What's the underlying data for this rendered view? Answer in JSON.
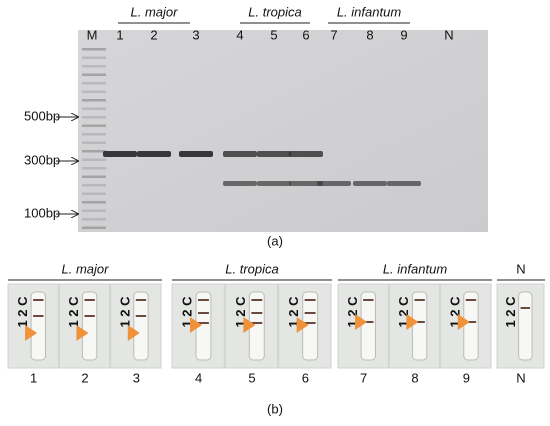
{
  "panel_a": {
    "species": [
      "L. major",
      "L. tropica",
      "L. infantum"
    ],
    "lanes": [
      "M",
      "1",
      "2",
      "3",
      "4",
      "5",
      "6",
      "7",
      "8",
      "9",
      "N"
    ],
    "markers": [
      "500bp",
      "300bp",
      "100bp"
    ],
    "caption": "(a)"
  },
  "panel_b": {
    "species": [
      "L. major",
      "L. tropica",
      "L. infantum",
      "N"
    ],
    "strips": [
      "1",
      "2",
      "3",
      "4",
      "5",
      "6",
      "7",
      "8",
      "9",
      "N"
    ],
    "strip_text": "1 2 C",
    "caption": "(b)"
  }
}
